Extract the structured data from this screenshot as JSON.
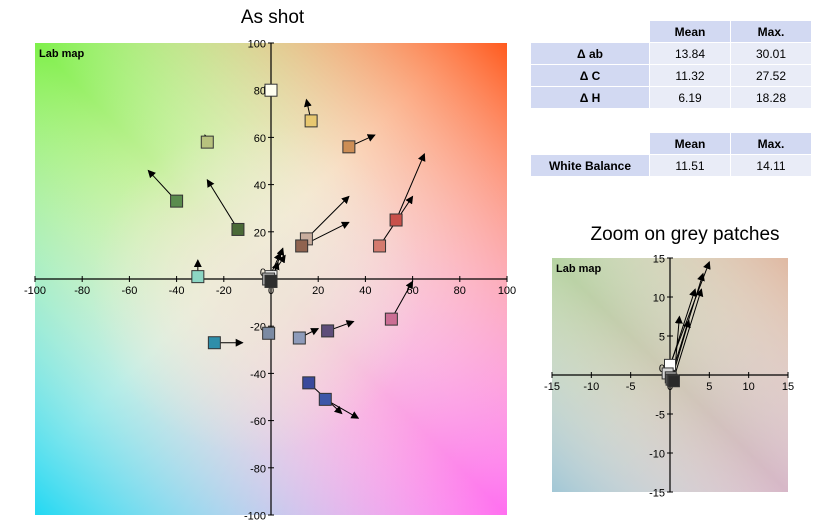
{
  "titles": {
    "main": "As shot",
    "zoom": "Zoom on grey patches"
  },
  "table_main": {
    "headers": [
      "",
      "Mean",
      "Max."
    ],
    "rows": [
      {
        "label": "Δ ab",
        "mean": "13.84",
        "max": "30.01"
      },
      {
        "label": "Δ C",
        "mean": "11.32",
        "max": "27.52"
      },
      {
        "label": "Δ H",
        "mean": "6.19",
        "max": "18.28"
      }
    ]
  },
  "table_wb": {
    "headers": [
      "",
      "Mean",
      "Max."
    ],
    "rows": [
      {
        "label": "White Balance",
        "mean": "11.51",
        "max": "14.11"
      }
    ]
  },
  "chart_data": [
    {
      "type": "scatter",
      "title": "As shot",
      "plot_label": "Lab map",
      "xlim": [
        -100,
        100
      ],
      "ylim": [
        -100,
        100
      ],
      "x_ticks": [
        -100,
        -80,
        -60,
        -40,
        -20,
        0,
        20,
        40,
        60,
        80,
        100
      ],
      "y_ticks": [
        -100,
        -80,
        -60,
        -40,
        -20,
        20,
        40,
        60,
        80,
        100
      ],
      "y_zero_label": "0",
      "points": [
        {
          "a": 0,
          "b": 80,
          "color": "#fffff0",
          "ta": 0,
          "tb": 80
        },
        {
          "a": 17,
          "b": 67,
          "color": "#e8c870",
          "ta": 15,
          "tb": 76
        },
        {
          "a": -27,
          "b": 58,
          "color": "#b7c27e",
          "ta": -28,
          "tb": 61
        },
        {
          "a": 33,
          "b": 56,
          "color": "#cd8e55",
          "ta": 44,
          "tb": 61
        },
        {
          "a": -40,
          "b": 33,
          "color": "#5a8c4e",
          "ta": -52,
          "tb": 46
        },
        {
          "a": -14,
          "b": 21,
          "color": "#4a6a37",
          "ta": -27,
          "tb": 42
        },
        {
          "a": 53,
          "b": 25,
          "color": "#c8504a",
          "ta": 65,
          "tb": 53
        },
        {
          "a": 46,
          "b": 14,
          "color": "#d47a6e",
          "ta": 60,
          "tb": 35
        },
        {
          "a": 15,
          "b": 17,
          "color": "#c8ad9d",
          "ta": 33,
          "tb": 35
        },
        {
          "a": 13,
          "b": 14,
          "color": "#90634f",
          "ta": 33,
          "tb": 24
        },
        {
          "a": -31,
          "b": 1,
          "color": "#8cd6c4",
          "ta": -31,
          "tb": 8
        },
        {
          "a": -24,
          "b": -27,
          "color": "#2e8eaa",
          "ta": -12,
          "tb": -27
        },
        {
          "a": -1,
          "b": -23,
          "color": "#7b8aa3",
          "ta": 0,
          "tb": -23
        },
        {
          "a": 12,
          "b": -25,
          "color": "#8e9bba",
          "ta": 20,
          "tb": -21
        },
        {
          "a": 24,
          "b": -22,
          "color": "#5e4e7a",
          "ta": 35,
          "tb": -18
        },
        {
          "a": 51,
          "b": -17,
          "color": "#cb6e94",
          "ta": 60,
          "tb": -1
        },
        {
          "a": 16,
          "b": -44,
          "color": "#3a4a9c",
          "ta": 30,
          "tb": -57
        },
        {
          "a": 23,
          "b": -51,
          "color": "#3c57a8",
          "ta": 37,
          "tb": -59
        },
        {
          "a": 0,
          "b": 1,
          "color": "#ffffff",
          "ta": 6,
          "tb": 10
        },
        {
          "a": -1,
          "b": 0,
          "color": "#b0b0b0",
          "ta": 4,
          "tb": 11
        },
        {
          "a": 0,
          "b": -1,
          "color": "#6a6a6a",
          "ta": 5,
          "tb": 13
        },
        {
          "a": 0,
          "b": -1,
          "color": "#2e2e2e",
          "ta": 3,
          "tb": 7
        }
      ]
    },
    {
      "type": "scatter",
      "title": "Zoom on grey patches",
      "plot_label": "Lab map",
      "xlim": [
        -15,
        15
      ],
      "ylim": [
        -15,
        15
      ],
      "x_ticks": [
        -15,
        -10,
        -5,
        0,
        5,
        10,
        15
      ],
      "y_ticks": [
        -15,
        -10,
        -5,
        5,
        10,
        15
      ],
      "y_zero_label": "0",
      "points": [
        {
          "a": 0,
          "b": 1.3,
          "color": "#ffffff",
          "ta": 5,
          "tb": 14.5
        },
        {
          "a": -0.3,
          "b": 0.2,
          "color": "#d6d6d6",
          "ta": 3.2,
          "tb": 11
        },
        {
          "a": 0.1,
          "b": -0.3,
          "color": "#a8a8a8",
          "ta": 4.2,
          "tb": 13
        },
        {
          "a": 0.2,
          "b": -0.6,
          "color": "#787878",
          "ta": 2.4,
          "tb": 7
        },
        {
          "a": 0.4,
          "b": -0.7,
          "color": "#4a4a4a",
          "ta": 4,
          "tb": 11
        },
        {
          "a": 0.5,
          "b": -0.8,
          "color": "#2a2a2a",
          "ta": 1.2,
          "tb": 7.5
        }
      ]
    }
  ]
}
